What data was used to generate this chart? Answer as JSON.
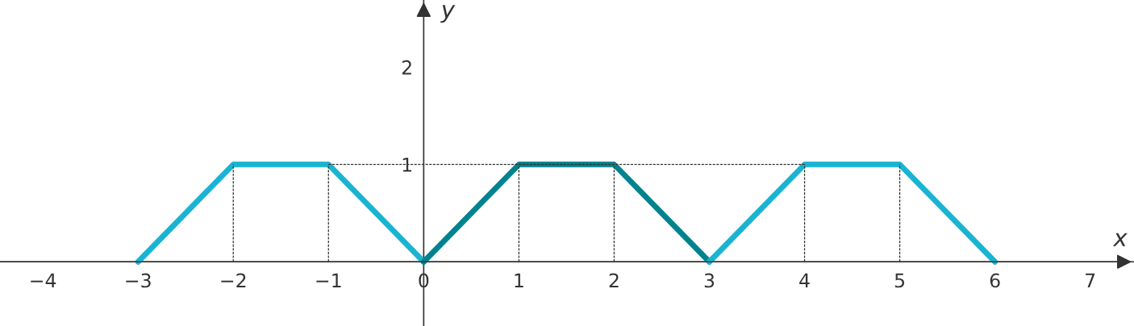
{
  "chart_data": {
    "type": "line",
    "xlabel": "x",
    "ylabel": "y",
    "xlim": [
      -4.45,
      7.46
    ],
    "ylim": [
      -0.66,
      2.69
    ],
    "xticks": [
      {
        "value": -4,
        "label": "−4"
      },
      {
        "value": -3,
        "label": "−3"
      },
      {
        "value": -2,
        "label": "−2"
      },
      {
        "value": -1,
        "label": "−1"
      },
      0,
      1,
      2,
      3,
      4,
      5,
      6,
      7
    ],
    "yticks": [
      1,
      2
    ],
    "grid": false,
    "legend": false,
    "series": [
      {
        "color": "#1ab4d2",
        "line_style": "solid",
        "x": [
          -3,
          -2,
          -1,
          0
        ],
        "values": [
          0,
          1,
          1,
          0
        ]
      },
      {
        "color": "#00838f",
        "line_style": "solid",
        "x": [
          0,
          1,
          2,
          3
        ],
        "values": [
          0,
          1,
          1,
          0
        ]
      },
      {
        "color": "#1ab4d2",
        "line_style": "solid",
        "x": [
          3,
          4,
          5,
          6
        ],
        "values": [
          0,
          1,
          1,
          0
        ]
      },
      {
        "color": "#333333",
        "line_style": "dashed",
        "x": [
          -1,
          4
        ],
        "values": [
          1,
          1
        ]
      },
      {
        "color": "#333333",
        "line_style": "dashed",
        "x": [
          -2,
          -2
        ],
        "values": [
          0,
          1
        ]
      },
      {
        "color": "#333333",
        "line_style": "dashed",
        "x": [
          -1,
          -1
        ],
        "values": [
          0,
          1
        ]
      },
      {
        "color": "#333333",
        "line_style": "dashed",
        "x": [
          1,
          1
        ],
        "values": [
          0,
          1
        ]
      },
      {
        "color": "#333333",
        "line_style": "dashed",
        "x": [
          2,
          2
        ],
        "values": [
          0,
          1
        ]
      },
      {
        "color": "#333333",
        "line_style": "dashed",
        "x": [
          4,
          4
        ],
        "values": [
          0,
          1
        ]
      },
      {
        "color": "#333333",
        "line_style": "dashed",
        "x": [
          5,
          5
        ],
        "values": [
          0,
          1
        ]
      }
    ]
  }
}
